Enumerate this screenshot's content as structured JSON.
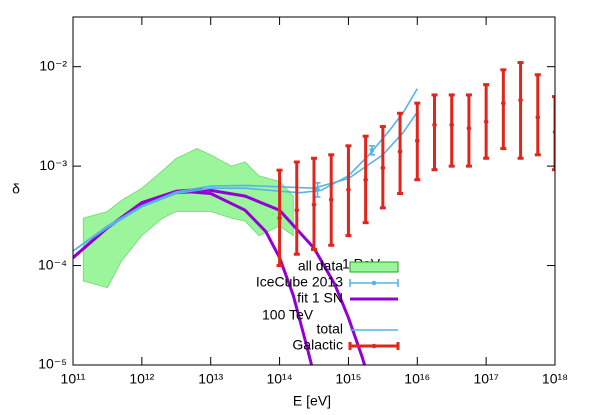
{
  "chart_data": {
    "type": "loglog",
    "xlabel": "E [eV]",
    "ylabel": "δ",
    "xlim": [
      100000000000.0,
      1e+18
    ],
    "ylim": [
      1e-05,
      0.0316
    ],
    "log_x": true,
    "log_y": true,
    "xticks": [
      {
        "value": 100000000000.0,
        "label": "10¹¹"
      },
      {
        "value": 1000000000000.0,
        "label": "10¹²"
      },
      {
        "value": 10000000000000.0,
        "label": "10¹³"
      },
      {
        "value": 100000000000000.0,
        "label": "10¹⁴"
      },
      {
        "value": 1000000000000000.0,
        "label": "10¹⁵"
      },
      {
        "value": 1e+16,
        "label": "10¹⁶"
      },
      {
        "value": 1e+17,
        "label": "10¹⁷"
      },
      {
        "value": 1e+18,
        "label": "10¹⁸"
      }
    ],
    "yticks": [
      {
        "value": 1e-05,
        "label": "10⁻⁵"
      },
      {
        "value": 0.0001,
        "label": "10⁻⁴"
      },
      {
        "value": 0.001,
        "label": "10⁻³"
      },
      {
        "value": 0.01,
        "label": "10⁻²"
      }
    ],
    "legend": "lower right",
    "series": [
      {
        "name": "all data",
        "kind": "band",
        "color": "#9bf59b",
        "x": [
          141300000000.0,
          316200000000.0,
          501200000000.0,
          1000000000000.0,
          1995000000000.0,
          3162000000000.0,
          6310000000000.0,
          10000000000000.0,
          19950000000000.0,
          31620000000000.0,
          50120000000000.0,
          100000000000000.0,
          158500000000000.0
        ],
        "upper": [
          0.0003,
          0.00035,
          0.00045,
          0.0006,
          0.0009,
          0.0012,
          0.0015,
          0.0013,
          0.001,
          0.0011,
          0.0008,
          0.0007,
          0.0005
        ],
        "lower": [
          7e-05,
          6e-05,
          0.00011,
          0.0002,
          0.0003,
          0.00035,
          0.00035,
          0.00035,
          0.0003,
          0.00028,
          0.0002,
          0.00025,
          0.0002
        ]
      },
      {
        "name": "IceCube 2013",
        "kind": "errorbars",
        "color": "#56b4e9",
        "x": [
          355000000000000.0,
          2200000000000000.0
        ],
        "values": [
          0.00058,
          0.00145
        ],
        "low": [
          0.00049,
          0.0013
        ],
        "high": [
          0.00068,
          0.0016
        ]
      },
      {
        "name": "fit 1 SN",
        "kind": "lines",
        "color": "#9400d3",
        "lines": [
          {
            "x": [
              100000000000.0,
              316200000000.0,
              1000000000000.0,
              3162000000000.0,
              5012000000000.0,
              10000000000000.0,
              31620000000000.0,
              63100000000000.0,
              100000000000000.0,
              158500000000000.0,
              251200000000000.0,
              316200000000000.0
            ],
            "values": [
              0.00012,
              0.00024,
              0.00042,
              0.00054,
              0.00055,
              0.00053,
              0.00036,
              0.00022,
              0.00012,
              5e-05,
              1.5e-05,
              8e-06
            ]
          },
          {
            "x": [
              100000000000.0,
              316200000000.0,
              1000000000000.0,
              3162000000000.0,
              6310000000000.0,
              10000000000000.0,
              31620000000000.0,
              100000000000000.0,
              316200000000000.0,
              631000000000000.0,
              1000000000000000.0,
              1585000000000000.0,
              1995000000000000.0
            ],
            "values": [
              0.00012,
              0.00024,
              0.00043,
              0.00056,
              0.00058,
              0.00057,
              0.0005,
              0.00036,
              0.00015,
              6.5e-05,
              3e-05,
              1.2e-05,
              7e-06
            ]
          }
        ]
      },
      {
        "name": "total",
        "kind": "lines",
        "color": "#56b4e9",
        "lines": [
          {
            "x": [
              100000000000.0,
              316200000000.0,
              1000000000000.0,
              3162000000000.0,
              10000000000000.0,
              31620000000000.0,
              100000000000000.0,
              199500000000000.0,
              398100000000000.0,
              1000000000000000.0,
              1995000000000000.0,
              3981000000000000.0,
              6310000000000000.0,
              1e+16
            ],
            "values": [
              0.00014,
              0.00024,
              0.00039,
              0.00053,
              0.0006,
              0.0006,
              0.00056,
              0.00054,
              0.00057,
              0.0008,
              0.0013,
              0.0023,
              0.0035,
              0.006
            ]
          },
          {
            "x": [
              100000000000.0,
              316200000000.0,
              1000000000000.0,
              3162000000000.0,
              10000000000000.0,
              31620000000000.0,
              100000000000000.0,
              316200000000000.0,
              1000000000000000.0,
              3162000000000000.0,
              6310000000000000.0,
              1e+16
            ],
            "values": [
              0.00014,
              0.00025,
              0.0004,
              0.00055,
              0.00063,
              0.00064,
              0.00062,
              0.0006,
              0.00075,
              0.0013,
              0.0022,
              0.0035
            ]
          }
        ]
      },
      {
        "name": "Galactic",
        "kind": "errorbars",
        "color": "#e0251b",
        "x": [
          100000000000000.0,
          177800000000000.0,
          316200000000000.0,
          562300000000000.0,
          1000000000000000.0,
          1778000000000000.0,
          3162000000000000.0,
          5623000000000000.0,
          1e+16,
          1.778e+16,
          3.162e+16,
          5.623e+16,
          1e+17,
          1.778e+17,
          3.162e+17,
          5.623e+17,
          1e+18
        ],
        "values": [
          0.0003,
          0.00036,
          0.00041,
          0.00046,
          0.00058,
          0.00073,
          0.00096,
          0.0014,
          0.0018,
          0.0026,
          0.0026,
          0.0024,
          0.0028,
          0.0043,
          0.0046,
          0.0031,
          0.0022
        ],
        "low": [
          0.0001,
          0.00013,
          0.000145,
          0.00016,
          0.0002,
          0.00027,
          0.00038,
          0.00053,
          0.00073,
          0.00092,
          0.001,
          0.001,
          0.0012,
          0.0015,
          0.0012,
          0.0013,
          0.00092
        ],
        "high": [
          0.00091,
          0.0011,
          0.0012,
          0.0013,
          0.0016,
          0.002,
          0.0025,
          0.0034,
          0.0043,
          0.0052,
          0.0052,
          0.0052,
          0.0066,
          0.0093,
          0.011,
          0.0083,
          0.005
        ]
      }
    ],
    "annotations": [
      "1 PeV",
      "100 TeV"
    ]
  }
}
